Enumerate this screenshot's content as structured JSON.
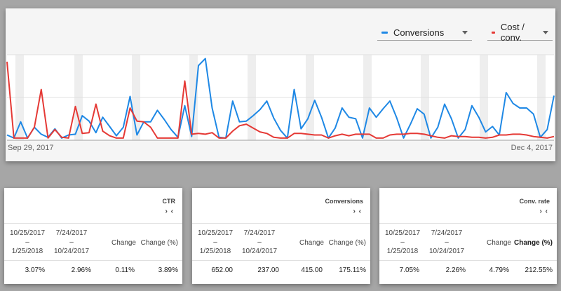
{
  "chart": {
    "legend": [
      {
        "label": "Conversions",
        "color": "#1e88e5"
      },
      {
        "label": "Cost / conv.",
        "color": "#e53935"
      }
    ],
    "start_date": "Sep 29, 2017",
    "end_date": "Dec 4, 2017"
  },
  "chart_data": {
    "type": "line",
    "x_start": "Sep 29, 2017",
    "x_end": "Dec 4, 2017",
    "series": [
      {
        "name": "Conversions",
        "color": "#1e88e5",
        "values": [
          0.05,
          0.01,
          0.22,
          0.01,
          0.15,
          0.06,
          0.02,
          0.13,
          0.01,
          0.05,
          0.06,
          0.3,
          0.23,
          0.08,
          0.28,
          0.16,
          0.04,
          0.15,
          0.55,
          0.05,
          0.22,
          0.22,
          0.37,
          0.25,
          0.12,
          0.02,
          0.43,
          0.03,
          0.95,
          1.04,
          0.4,
          0.02,
          0.01,
          0.49,
          0.22,
          0.23,
          0.3,
          0.38,
          0.49,
          0.27,
          0.11,
          0.01,
          0.64,
          0.13,
          0.26,
          0.5,
          0.28,
          0.01,
          0.14,
          0.4,
          0.28,
          0.26,
          0.01,
          0.4,
          0.28,
          0.39,
          0.49,
          0.27,
          0.01,
          0.19,
          0.39,
          0.32,
          0.01,
          0.15,
          0.45,
          0.26,
          0.01,
          0.12,
          0.43,
          0.28,
          0.09,
          0.16,
          0.05,
          0.6,
          0.46,
          0.4,
          0.4,
          0.32,
          0.02,
          0.12,
          0.56
        ]
      },
      {
        "name": "Cost / conv.",
        "color": "#e53935",
        "values": [
          1.0,
          0.01,
          0.01,
          0.01,
          0.15,
          0.64,
          0.01,
          0.12,
          0.02,
          0.01,
          0.42,
          0.07,
          0.08,
          0.45,
          0.1,
          0.04,
          0.01,
          0.01,
          0.4,
          0.23,
          0.22,
          0.15,
          0.01,
          0.01,
          0.01,
          0.01,
          0.75,
          0.06,
          0.07,
          0.06,
          0.08,
          0.01,
          0.01,
          0.1,
          0.17,
          0.19,
          0.14,
          0.09,
          0.07,
          0.02,
          0.01,
          0.01,
          0.07,
          0.07,
          0.06,
          0.05,
          0.05,
          0.01,
          0.04,
          0.06,
          0.04,
          0.06,
          0.06,
          0.06,
          0.01,
          0.01,
          0.05,
          0.06,
          0.06,
          0.07,
          0.07,
          0.06,
          0.04,
          0.02,
          0.01,
          0.04,
          0.03,
          0.03,
          0.02,
          0.02,
          0.01,
          0.02,
          0.05,
          0.05,
          0.06,
          0.06,
          0.05,
          0.03,
          0.02,
          0.01,
          0.03
        ]
      }
    ]
  },
  "tables": [
    {
      "metric": "CTR",
      "period1_line1": "10/25/2017",
      "period1_line2": "1/25/2018",
      "period2_line1": "7/24/2017",
      "period2_line2": "10/24/2017",
      "change": "Change",
      "change_pct": "Change (%)",
      "dash": "–",
      "values": [
        "3.07%",
        "2.96%",
        "0.11%",
        "3.89%"
      ],
      "pct_bold": false
    },
    {
      "metric": "Conversions",
      "period1_line1": "10/25/2017",
      "period1_line2": "1/25/2018",
      "period2_line1": "7/24/2017",
      "period2_line2": "10/24/2017",
      "change": "Change",
      "change_pct": "Change (%)",
      "dash": "–",
      "values": [
        "652.00",
        "237.00",
        "415.00",
        "175.11%"
      ],
      "pct_bold": false
    },
    {
      "metric": "Conv. rate",
      "period1_line1": "10/25/2017",
      "period1_line2": "1/25/2018",
      "period2_line1": "7/24/2017",
      "period2_line2": "10/24/2017",
      "change": "Change",
      "change_pct": "Change (%)",
      "dash": "–",
      "values": [
        "7.05%",
        "2.26%",
        "4.79%",
        "212.55%"
      ],
      "pct_bold": true
    }
  ],
  "arrows": "› ‹"
}
